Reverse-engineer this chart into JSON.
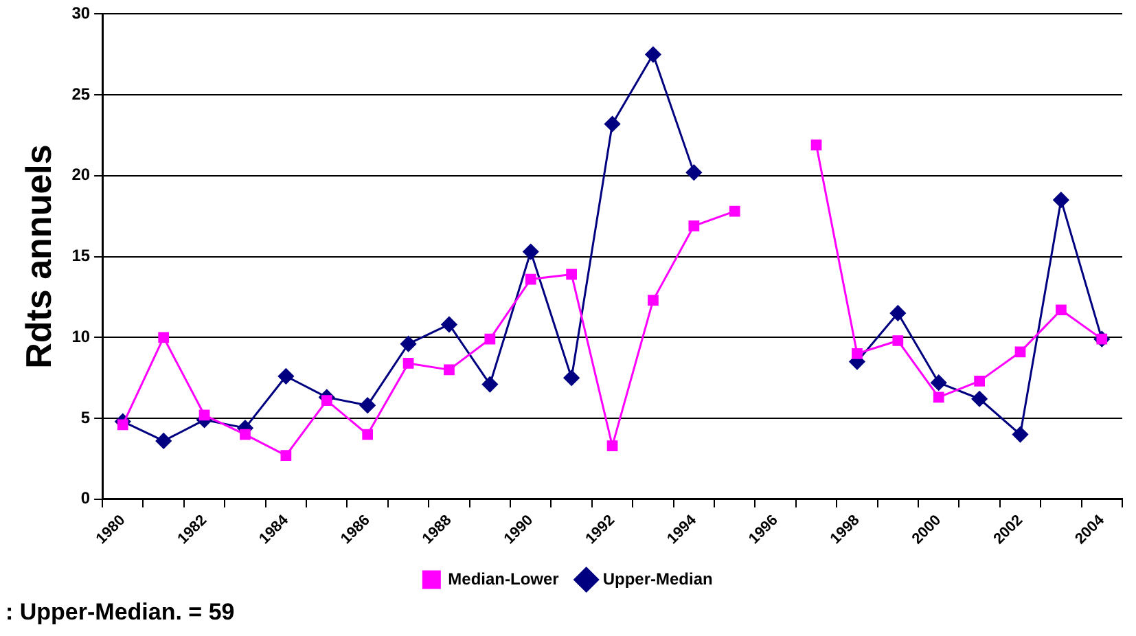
{
  "chart_data": {
    "type": "line",
    "ylabel": "Rdts annuels",
    "annotations": [
      ": Upper-Median. = 59"
    ],
    "categories": [
      "1980",
      null,
      "1982",
      null,
      "1984",
      null,
      "1986",
      null,
      "1988",
      null,
      "1990",
      null,
      "1992",
      null,
      "1994",
      null,
      "1996",
      null,
      "1998",
      null,
      "2000",
      null,
      "2002",
      null,
      "2004"
    ],
    "series": [
      {
        "name": "Upper-Median",
        "color": "#000080",
        "marker": "diamond",
        "values": [
          4.8,
          3.6,
          4.9,
          4.4,
          7.6,
          6.3,
          5.8,
          9.6,
          10.8,
          7.1,
          15.3,
          7.5,
          23.2,
          27.5,
          20.2,
          null,
          null,
          null,
          8.5,
          11.5,
          7.2,
          6.2,
          4.0,
          18.5,
          9.9
        ]
      },
      {
        "name": "Median-Lower",
        "color": "#ff00ff",
        "marker": "square",
        "values": [
          4.6,
          10.0,
          5.2,
          4.0,
          2.7,
          6.1,
          4.0,
          8.4,
          8.0,
          9.9,
          13.6,
          13.9,
          3.3,
          12.3,
          16.9,
          17.8,
          null,
          21.9,
          9.0,
          9.8,
          6.3,
          7.3,
          9.1,
          11.7,
          9.9
        ]
      }
    ],
    "ylim": [
      0,
      30
    ],
    "yticks": [
      0,
      5,
      10,
      15,
      20,
      25,
      30
    ],
    "grid": "y",
    "legend": "bottom",
    "line_style": "solid"
  }
}
